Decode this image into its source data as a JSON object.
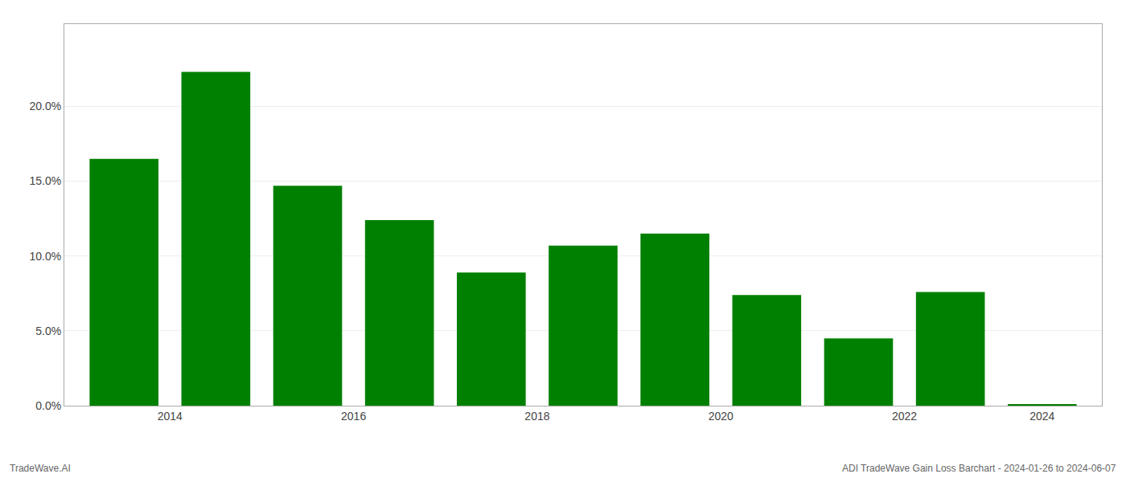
{
  "chart_data": {
    "type": "bar",
    "categories": [
      "2014",
      null,
      "2016",
      null,
      "2018",
      null,
      "2020",
      null,
      "2022",
      null,
      "2024"
    ],
    "values": [
      0.165,
      0.223,
      0.147,
      0.124,
      0.089,
      0.107,
      0.115,
      0.074,
      0.045,
      0.076,
      0.001
    ],
    "color": "#008000",
    "ylim": [
      0,
      0.255
    ],
    "yticks": [
      {
        "value": 0.0,
        "label": "0.0%"
      },
      {
        "value": 0.05,
        "label": "5.0%"
      },
      {
        "value": 0.1,
        "label": "10.0%"
      },
      {
        "value": 0.15,
        "label": "15.0%"
      },
      {
        "value": 0.2,
        "label": "20.0%"
      }
    ],
    "grid": true,
    "annotations": [
      "TradeWave.AI",
      "ADI TradeWave Gain Loss Barchart - 2024-01-26 to 2024-06-07"
    ]
  }
}
